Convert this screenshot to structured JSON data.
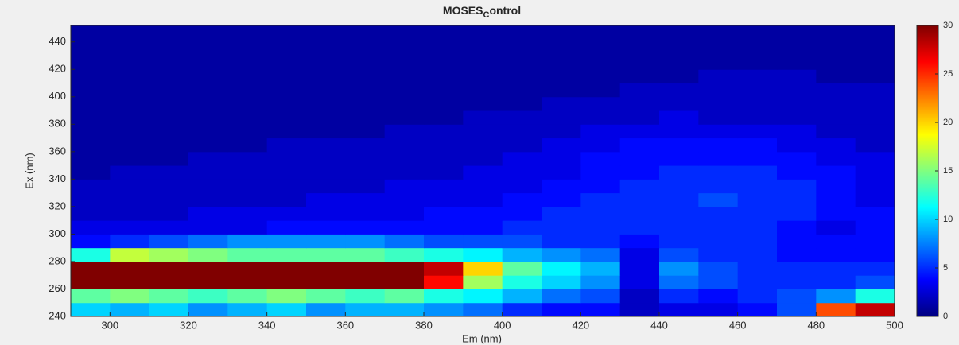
{
  "chart_data": {
    "type": "heatmap",
    "title": {
      "main": "MOSES",
      "subscript": "C",
      "rest": "ontrol"
    },
    "x_label": "Em (nm)",
    "y_label": "Ex (nm)",
    "xlim": [
      290,
      500
    ],
    "ylim": [
      240,
      452
    ],
    "xticks": [
      300,
      320,
      340,
      360,
      380,
      400,
      420,
      440,
      460,
      480,
      500
    ],
    "yticks": [
      240,
      260,
      280,
      300,
      320,
      340,
      360,
      380,
      400,
      420,
      440
    ],
    "xbins": [
      290,
      300,
      310,
      320,
      330,
      340,
      350,
      360,
      370,
      380,
      390,
      400,
      410,
      420,
      430,
      440,
      450,
      460,
      470,
      480,
      490,
      500
    ],
    "ybins": [
      240,
      250,
      260,
      270,
      280,
      290,
      300,
      310,
      320,
      330,
      340,
      350,
      360,
      370,
      380,
      390,
      400,
      410,
      420,
      430,
      440,
      452
    ],
    "colormap": "jet",
    "clim": [
      0,
      30
    ],
    "cticks": [
      0,
      5,
      10,
      15,
      20,
      25,
      30
    ],
    "z": [
      [
        10,
        9,
        10,
        8,
        9,
        10,
        8,
        9,
        9,
        8,
        7,
        5,
        4,
        4,
        2,
        3,
        3,
        4,
        6,
        24,
        28
      ],
      [
        14,
        15,
        14,
        13,
        14,
        15,
        14,
        13,
        14,
        12,
        11,
        9,
        7,
        6,
        2,
        5,
        4,
        5,
        6,
        8,
        12
      ],
      [
        30,
        30,
        30,
        30,
        30,
        30,
        30,
        30,
        30,
        26,
        16,
        12,
        10,
        8,
        3,
        7,
        6,
        5,
        5,
        5,
        6
      ],
      [
        30,
        30,
        30,
        30,
        30,
        30,
        30,
        30,
        30,
        28,
        20,
        14,
        11,
        9,
        3,
        8,
        6,
        5,
        5,
        5,
        5
      ],
      [
        12,
        17,
        16,
        15,
        14,
        14,
        14,
        14,
        13,
        12,
        11,
        9,
        8,
        7,
        3,
        6,
        5,
        5,
        4,
        4,
        4
      ],
      [
        4,
        5,
        6,
        7,
        8,
        8,
        8,
        8,
        7,
        6,
        6,
        6,
        5,
        5,
        4,
        5,
        5,
        5,
        4,
        4,
        4
      ],
      [
        3,
        3,
        3,
        3,
        3,
        4,
        4,
        4,
        4,
        4,
        4,
        5,
        5,
        5,
        5,
        5,
        5,
        5,
        4,
        3,
        4
      ],
      [
        2,
        2,
        2,
        3,
        3,
        3,
        3,
        3,
        3,
        4,
        4,
        4,
        5,
        5,
        5,
        5,
        5,
        5,
        5,
        4,
        4
      ],
      [
        2,
        2,
        2,
        2,
        2,
        2,
        3,
        3,
        3,
        3,
        3,
        4,
        4,
        5,
        5,
        5,
        6,
        5,
        5,
        4,
        3
      ],
      [
        2,
        2,
        2,
        2,
        2,
        2,
        2,
        2,
        3,
        3,
        3,
        3,
        4,
        4,
        5,
        5,
        5,
        5,
        5,
        4,
        3
      ],
      [
        1,
        2,
        2,
        2,
        2,
        2,
        2,
        2,
        2,
        2,
        3,
        3,
        3,
        4,
        4,
        5,
        5,
        5,
        4,
        4,
        3
      ],
      [
        1,
        1,
        1,
        2,
        2,
        2,
        2,
        2,
        2,
        2,
        2,
        3,
        3,
        4,
        4,
        4,
        4,
        4,
        4,
        3,
        3
      ],
      [
        1,
        1,
        1,
        1,
        1,
        2,
        2,
        2,
        2,
        2,
        2,
        2,
        3,
        3,
        4,
        4,
        4,
        4,
        3,
        3,
        2
      ],
      [
        1,
        1,
        1,
        1,
        1,
        1,
        1,
        1,
        2,
        2,
        2,
        2,
        2,
        3,
        3,
        3,
        3,
        3,
        3,
        2,
        2
      ],
      [
        1,
        1,
        1,
        1,
        1,
        1,
        1,
        1,
        1,
        1,
        2,
        2,
        2,
        2,
        2,
        3,
        2,
        2,
        2,
        2,
        2
      ],
      [
        1,
        1,
        1,
        1,
        1,
        1,
        1,
        1,
        1,
        1,
        1,
        1,
        2,
        2,
        2,
        2,
        2,
        2,
        2,
        2,
        2
      ],
      [
        1,
        1,
        1,
        1,
        1,
        1,
        1,
        1,
        1,
        1,
        1,
        1,
        1,
        1,
        2,
        2,
        2,
        2,
        2,
        2,
        2
      ],
      [
        1,
        1,
        1,
        1,
        1,
        1,
        1,
        1,
        1,
        1,
        1,
        1,
        1,
        1,
        1,
        1,
        2,
        2,
        2,
        1,
        1
      ],
      [
        1,
        1,
        1,
        1,
        1,
        1,
        1,
        1,
        1,
        1,
        1,
        1,
        1,
        1,
        1,
        1,
        1,
        1,
        1,
        1,
        1
      ],
      [
        1,
        1,
        1,
        1,
        1,
        1,
        1,
        1,
        1,
        1,
        1,
        1,
        1,
        1,
        1,
        1,
        1,
        1,
        1,
        1,
        1
      ],
      [
        1,
        1,
        1,
        1,
        1,
        1,
        1,
        1,
        1,
        1,
        1,
        1,
        1,
        1,
        1,
        1,
        1,
        1,
        1,
        1,
        1
      ]
    ]
  }
}
